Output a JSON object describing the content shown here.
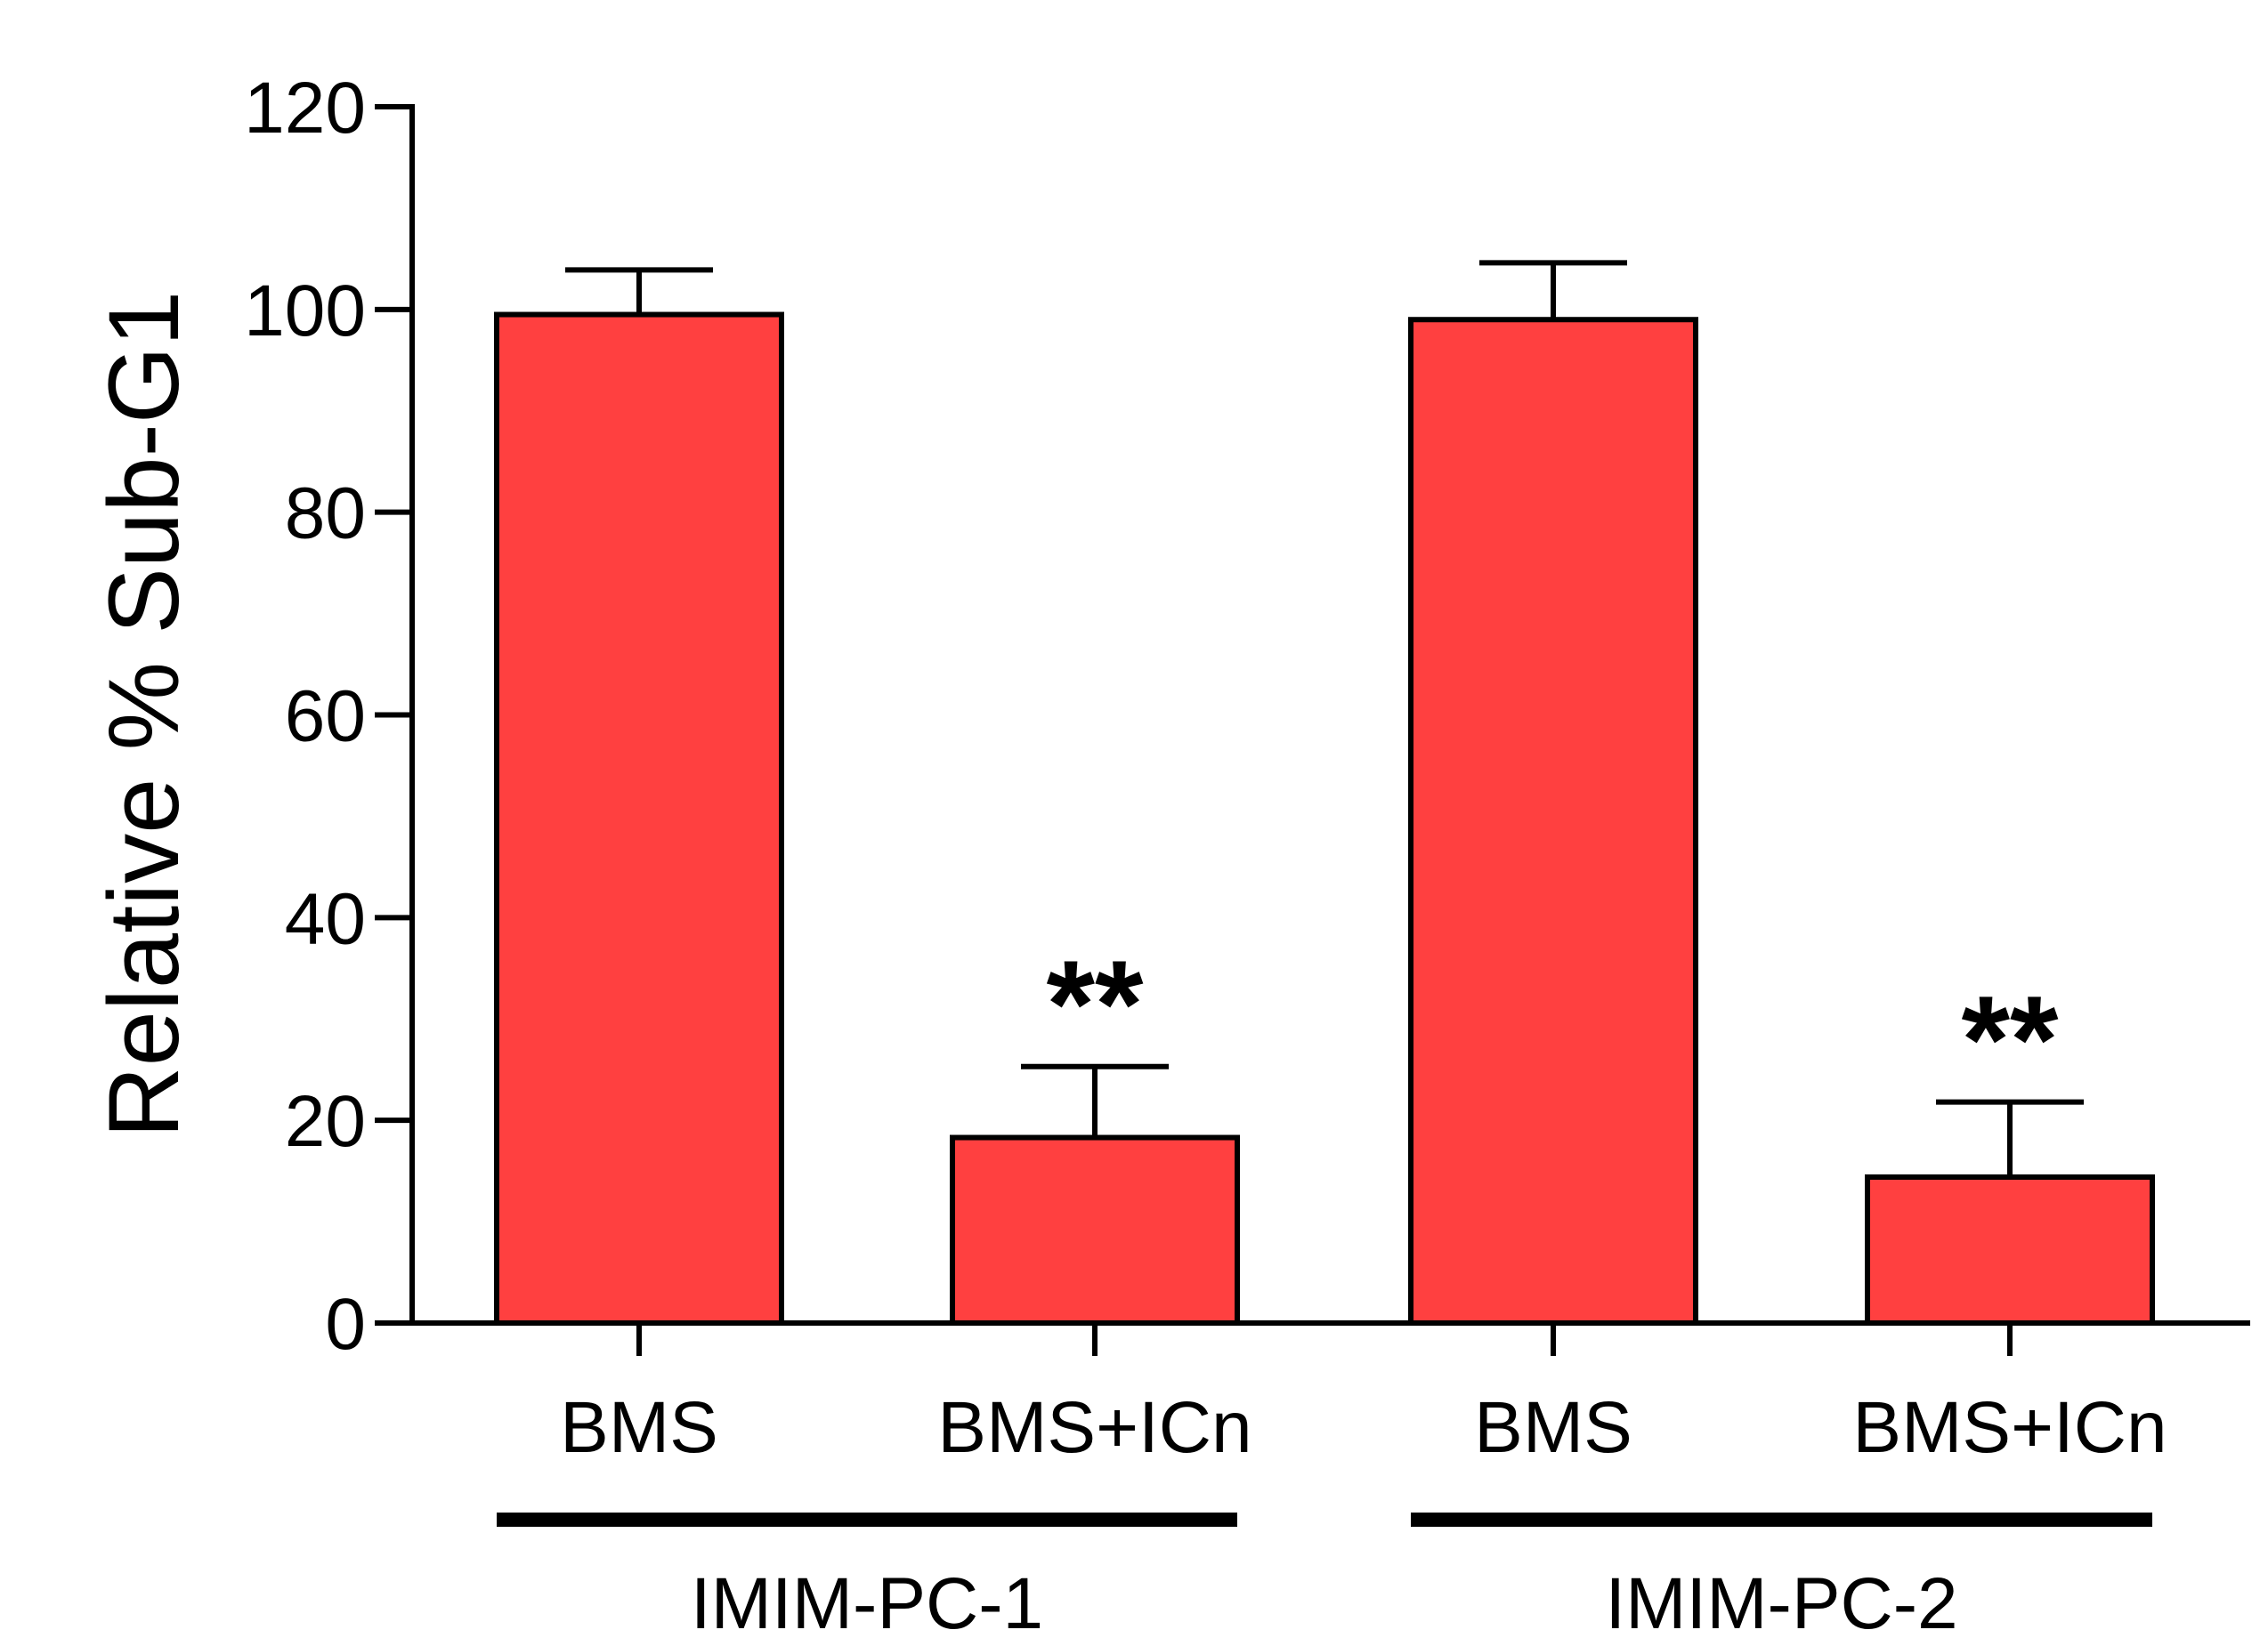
{
  "chart_data": {
    "type": "bar",
    "categories": [
      "BMS",
      "BMS+ICn",
      "BMS",
      "BMS+ICn"
    ],
    "values": [
      99.5,
      18.3,
      99.0,
      14.4
    ],
    "errors": [
      4.4,
      7.0,
      5.6,
      7.4
    ],
    "significance": [
      "",
      "**",
      "",
      "**"
    ],
    "groups": [
      {
        "label": "IMIM-PC-1",
        "categories": [
          0,
          1
        ]
      },
      {
        "label": "IMIM-PC-2",
        "categories": [
          2,
          3
        ]
      }
    ],
    "title": "",
    "xlabel": "",
    "ylabel": "Relative % Sub-G1",
    "ylim": [
      0,
      120
    ],
    "yticks": [
      0,
      20,
      40,
      60,
      80,
      100,
      120
    ],
    "bar_color": "#ff4040",
    "edge_color": "#000000",
    "grid": false,
    "legend": "none"
  }
}
